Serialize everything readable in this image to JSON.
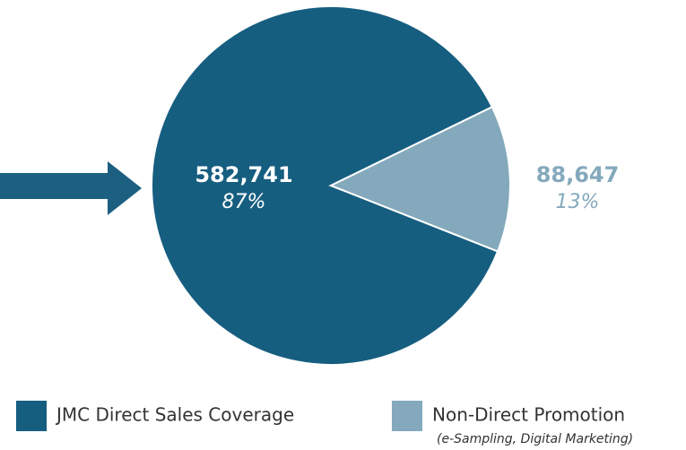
{
  "chart_data": {
    "type": "pie",
    "categories": [
      "JMC Direct Sales Coverage",
      "Non-Direct Promotion"
    ],
    "values": [
      582741,
      88647
    ],
    "value_labels": [
      "582,741",
      "88,647"
    ],
    "percent_labels": [
      "87%",
      "13%"
    ],
    "colors": [
      "#165e80",
      "#84a9bc"
    ],
    "legend_note": "(e-Sampling, Digital Marketing)"
  }
}
